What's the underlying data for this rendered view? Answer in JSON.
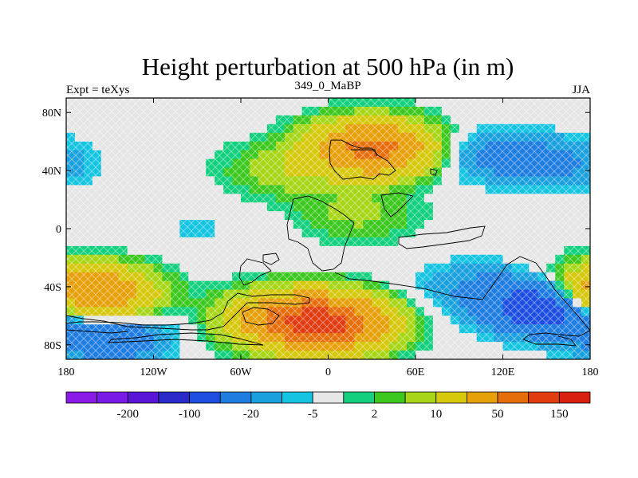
{
  "chart_data": {
    "type": "heatmap",
    "title": "Height perturbation at 500 hPa (in m)",
    "subtitle_left": "Expt = teXys",
    "subtitle_center": "349_0_MaBP",
    "subtitle_right": "JJA",
    "x_ticks": [
      "180",
      "120W",
      "60W",
      "0",
      "60E",
      "120E",
      "180"
    ],
    "x_tick_values": [
      -180,
      -120,
      -60,
      0,
      60,
      120,
      180
    ],
    "y_ticks": [
      "80N",
      "40N",
      "0",
      "40S",
      "80S"
    ],
    "y_tick_values": [
      80,
      40,
      0,
      -40,
      -80
    ],
    "xlim": [
      -180,
      180
    ],
    "ylim": [
      -90,
      90
    ],
    "colorbar": {
      "colors": [
        "#8a1ae6",
        "#7a1ae6",
        "#5a16d6",
        "#2a2ac8",
        "#1e4ee0",
        "#1f7de0",
        "#1aa0dc",
        "#14c4e0",
        "#e6e6e6",
        "#13d07e",
        "#3cc81e",
        "#a6d616",
        "#d6c80a",
        "#e6a00a",
        "#e66e0a",
        "#e03c10",
        "#d8200e"
      ],
      "labels": [
        "-200",
        "-100",
        "-20",
        "-5",
        "2",
        "10",
        "50",
        "150"
      ],
      "label_after_box": [
        1,
        3,
        5,
        7,
        9,
        11,
        13,
        15
      ]
    },
    "field": {
      "background_value": 0,
      "features": [
        {
          "lon": 30,
          "lat": 55,
          "value": 120
        },
        {
          "lon": 115,
          "lat": 50,
          "value": -25
        },
        {
          "lon": 160,
          "lat": 45,
          "value": -20
        },
        {
          "lon": -165,
          "lat": -45,
          "value": 110
        },
        {
          "lon": -30,
          "lat": -62,
          "value": 70
        },
        {
          "lon": 0,
          "lat": -65,
          "value": 150
        },
        {
          "lon": 150,
          "lat": -55,
          "value": -90
        },
        {
          "lon": 100,
          "lat": -40,
          "value": -20
        },
        {
          "lon": -150,
          "lat": -75,
          "value": -40
        },
        {
          "lon": -90,
          "lat": 0,
          "value": -6
        },
        {
          "lon": -30,
          "lat": 40,
          "value": 15
        },
        {
          "lon": 20,
          "lat": 10,
          "value": 12
        }
      ]
    }
  }
}
